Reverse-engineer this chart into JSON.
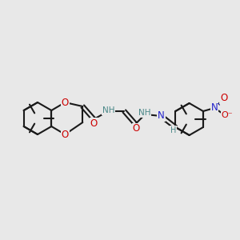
{
  "background_color": "#e8e8e8",
  "bond_color": "#1a1a1a",
  "atom_colors": {
    "O": "#cc0000",
    "N": "#2222cc",
    "H": "#4a8888"
  },
  "figsize": [
    3.0,
    3.0
  ],
  "dpi": 100,
  "xlim": [
    0,
    300
  ],
  "ylim": [
    0,
    300
  ]
}
